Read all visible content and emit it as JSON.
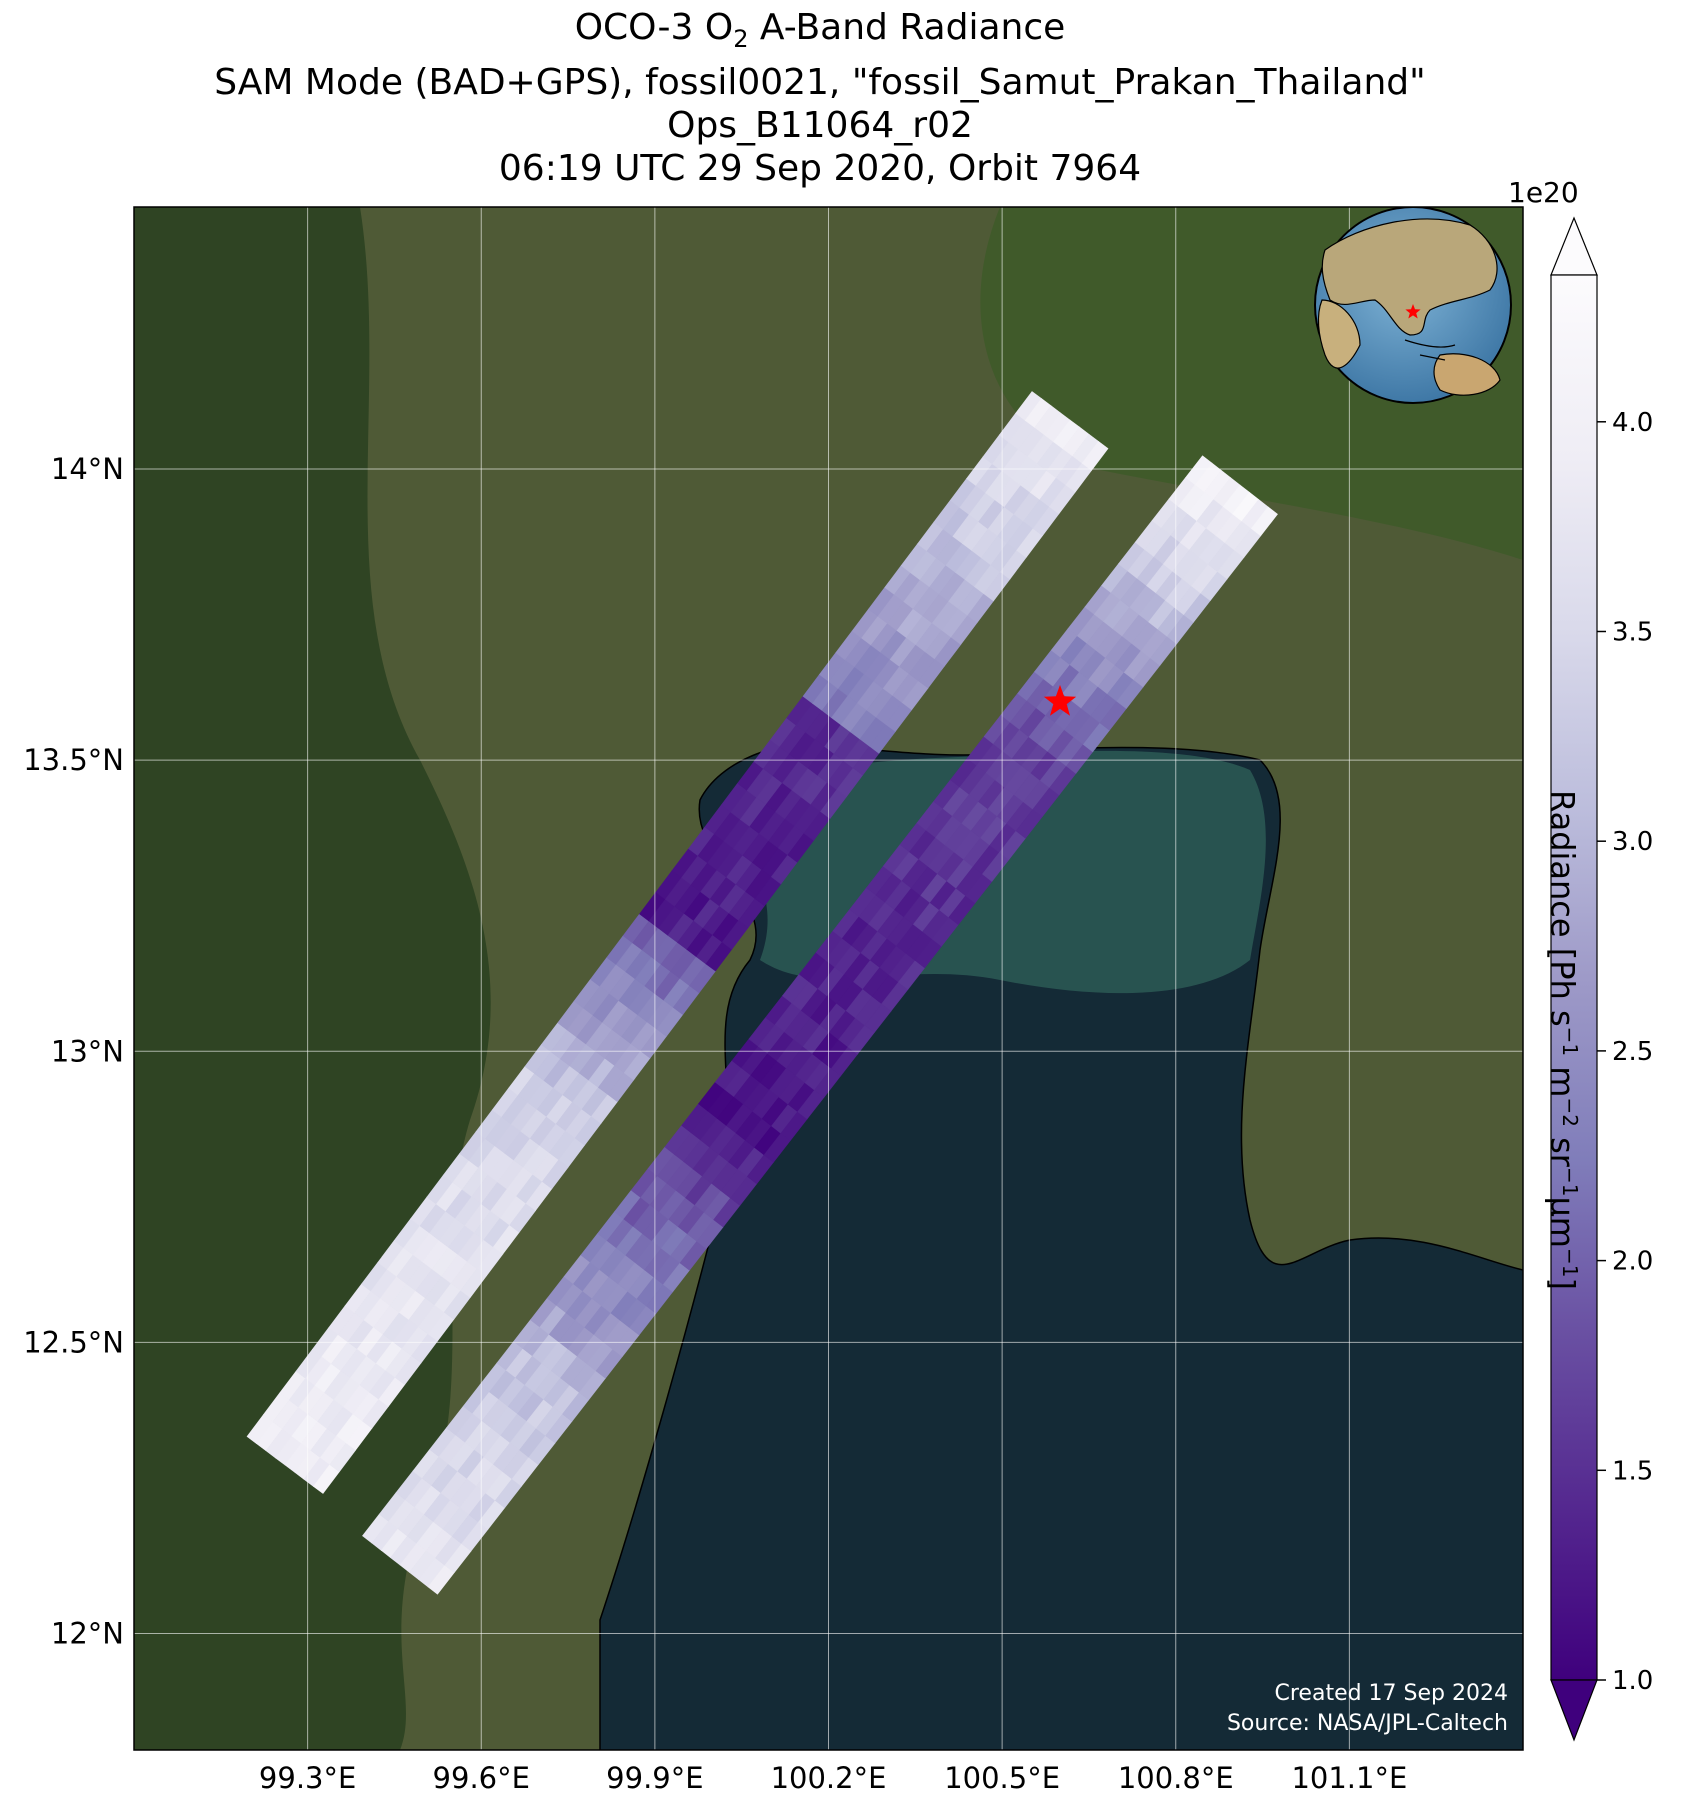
{
  "title": {
    "line1_pre": "OCO-3 O",
    "line1_sub": "2",
    "line1_post": " A-Band Radiance",
    "line2": "SAM Mode (BAD+GPS), fossil0021, \"fossil_Samut_Prakan_Thailand\"",
    "line3": "Ops_B11064_r02",
    "line4": "06:19 UTC 29 Sep 2020, Orbit 7964"
  },
  "map": {
    "lon_range": [
      99.0,
      101.4
    ],
    "lat_range": [
      11.8,
      14.45
    ],
    "lon_ticks": [
      99.3,
      99.6,
      99.9,
      100.2,
      100.5,
      100.8,
      101.1
    ],
    "lon_tick_labels": [
      "99.3°E",
      "99.6°E",
      "99.9°E",
      "100.2°E",
      "100.5°E",
      "100.8°E",
      "101.1°E"
    ],
    "lat_ticks": [
      12.0,
      12.5,
      13.0,
      13.5,
      14.0
    ],
    "lat_tick_labels": [
      "12°N",
      "12.5°N",
      "13°N",
      "13.5°N",
      "14°N"
    ],
    "site_marker": {
      "lon": 100.6,
      "lat": 13.6,
      "color": "#ff0000",
      "symbol": "star-icon"
    },
    "basemap": {
      "land": "#4f5a36",
      "forest": "#2f4423",
      "water": "#142a36",
      "gulf_shallow": "#2c5a55"
    }
  },
  "colorbar": {
    "label_pre": "Radiance [Ph s",
    "label_exp1": "−1",
    "label_mid1": " m",
    "label_exp2": "−2",
    "label_mid2": " sr",
    "label_exp3": "−1",
    "label_mid3": "μm",
    "label_exp4": "−1",
    "label_post": "]",
    "exponent_label": "1e20",
    "min": 1.0,
    "max": 4.35,
    "ticks": [
      1.0,
      1.5,
      2.0,
      2.5,
      3.0,
      3.5,
      4.0
    ],
    "tick_labels": [
      "1.0",
      "1.5",
      "2.0",
      "2.5",
      "3.0",
      "3.5",
      "4.0"
    ],
    "colors": [
      "#3f007d",
      "#54278f",
      "#6a51a3",
      "#807dba",
      "#9e9ac8",
      "#bcbddc",
      "#dadaeb",
      "#efedf5",
      "#fcfbfd"
    ]
  },
  "credit": {
    "line1": "Created 17 Sep 2024",
    "line2": "Source: NASA/JPL-Caltech"
  },
  "inset": {
    "marker_color": "#ff0000",
    "symbol": "star-icon"
  }
}
